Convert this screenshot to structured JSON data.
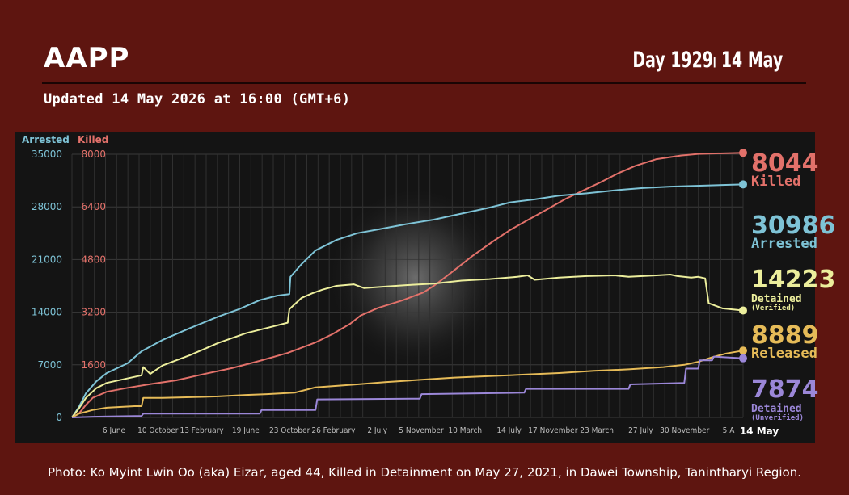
{
  "header": {
    "brand": "AAPP",
    "day": "Day 1929၊ 14 May",
    "updated": "Updated 14 May 2026 at 16:00 (GMT+6)"
  },
  "caption": "Photo: Ko Myint Lwin Oo (aka) Eizar, aged 44, Killed in Detainment on May 27, 2021, in Dawei Township, Tanintharyi Region.",
  "chart_data": {
    "type": "line",
    "axes": {
      "left_arrested": {
        "label": "Arrested",
        "ticks": [
          "0",
          "7000",
          "14000",
          "21000",
          "28000",
          "35000"
        ],
        "ylim": [
          0,
          35000
        ],
        "color": "#7ec3d6"
      },
      "left_killed": {
        "label": "Killed",
        "ticks": [
          "1600",
          "3200",
          "4800",
          "6400",
          "8000"
        ],
        "ylim": [
          0,
          8000
        ],
        "color": "#e2716a"
      }
    },
    "x_tick_labels": [
      "6 June",
      "10 October",
      "13 February",
      "19 June",
      "23 October",
      "26 February",
      "2 July",
      "5 November",
      "10 March",
      "14 July",
      "17 November",
      "23 March",
      "27 July",
      "30 November",
      "5 A"
    ],
    "x_end_label": "14 May",
    "x_range_days": [
      0,
      1929
    ],
    "grid": true,
    "series": [
      {
        "name": "Killed",
        "axis": "left_killed",
        "color": "#e2716a",
        "end_value": "8044",
        "points": [
          [
            0,
            0
          ],
          [
            20,
            120
          ],
          [
            40,
            380
          ],
          [
            60,
            600
          ],
          [
            100,
            780
          ],
          [
            160,
            900
          ],
          [
            230,
            1020
          ],
          [
            300,
            1130
          ],
          [
            380,
            1320
          ],
          [
            460,
            1500
          ],
          [
            540,
            1720
          ],
          [
            620,
            1960
          ],
          [
            700,
            2280
          ],
          [
            750,
            2540
          ],
          [
            800,
            2850
          ],
          [
            830,
            3100
          ],
          [
            880,
            3330
          ],
          [
            950,
            3560
          ],
          [
            1010,
            3800
          ],
          [
            1040,
            4000
          ],
          [
            1090,
            4400
          ],
          [
            1150,
            4900
          ],
          [
            1210,
            5350
          ],
          [
            1260,
            5700
          ],
          [
            1310,
            6000
          ],
          [
            1370,
            6350
          ],
          [
            1420,
            6650
          ],
          [
            1470,
            6900
          ],
          [
            1520,
            7150
          ],
          [
            1570,
            7420
          ],
          [
            1620,
            7650
          ],
          [
            1680,
            7850
          ],
          [
            1750,
            7960
          ],
          [
            1800,
            8010
          ],
          [
            1929,
            8044
          ]
        ]
      },
      {
        "name": "Arrested",
        "axis": "left_arrested",
        "color": "#7ec3d6",
        "end_value": "30986",
        "points": [
          [
            0,
            0
          ],
          [
            20,
            1400
          ],
          [
            40,
            3200
          ],
          [
            70,
            4800
          ],
          [
            100,
            5900
          ],
          [
            160,
            7200
          ],
          [
            200,
            8800
          ],
          [
            260,
            10300
          ],
          [
            340,
            11900
          ],
          [
            420,
            13400
          ],
          [
            480,
            14400
          ],
          [
            540,
            15600
          ],
          [
            590,
            16200
          ],
          [
            625,
            16400
          ],
          [
            628,
            18700
          ],
          [
            660,
            20400
          ],
          [
            700,
            22200
          ],
          [
            760,
            23600
          ],
          [
            820,
            24500
          ],
          [
            880,
            25000
          ],
          [
            960,
            25700
          ],
          [
            1040,
            26300
          ],
          [
            1100,
            26900
          ],
          [
            1160,
            27500
          ],
          [
            1200,
            27900
          ],
          [
            1260,
            28600
          ],
          [
            1330,
            29000
          ],
          [
            1400,
            29500
          ],
          [
            1480,
            29800
          ],
          [
            1560,
            30200
          ],
          [
            1640,
            30500
          ],
          [
            1720,
            30700
          ],
          [
            1929,
            30986
          ]
        ]
      },
      {
        "name": "Detained",
        "sublabel": "(Verified)",
        "axis": "left_arrested",
        "color": "#ecee9c",
        "end_value": "14223",
        "points": [
          [
            0,
            0
          ],
          [
            20,
            1200
          ],
          [
            40,
            2600
          ],
          [
            70,
            3900
          ],
          [
            100,
            4600
          ],
          [
            200,
            5600
          ],
          [
            205,
            6700
          ],
          [
            225,
            5800
          ],
          [
            260,
            6900
          ],
          [
            340,
            8300
          ],
          [
            420,
            9900
          ],
          [
            500,
            11200
          ],
          [
            560,
            11900
          ],
          [
            620,
            12600
          ],
          [
            625,
            14400
          ],
          [
            660,
            15900
          ],
          [
            690,
            16500
          ],
          [
            720,
            17000
          ],
          [
            760,
            17500
          ],
          [
            810,
            17700
          ],
          [
            840,
            17200
          ],
          [
            900,
            17400
          ],
          [
            960,
            17600
          ],
          [
            1040,
            17800
          ],
          [
            1120,
            18200
          ],
          [
            1200,
            18400
          ],
          [
            1280,
            18700
          ],
          [
            1310,
            18900
          ],
          [
            1330,
            18300
          ],
          [
            1400,
            18600
          ],
          [
            1480,
            18800
          ],
          [
            1560,
            18900
          ],
          [
            1600,
            18700
          ],
          [
            1680,
            18900
          ],
          [
            1720,
            19000
          ],
          [
            1740,
            18800
          ],
          [
            1780,
            18600
          ],
          [
            1800,
            18700
          ],
          [
            1820,
            18500
          ],
          [
            1830,
            15200
          ],
          [
            1870,
            14500
          ],
          [
            1929,
            14223
          ]
        ]
      },
      {
        "name": "Released",
        "axis": "left_arrested",
        "color": "#e6bb58",
        "end_value": "8889",
        "points": [
          [
            0,
            0
          ],
          [
            20,
            500
          ],
          [
            60,
            1000
          ],
          [
            100,
            1300
          ],
          [
            180,
            1500
          ],
          [
            200,
            1500
          ],
          [
            205,
            2600
          ],
          [
            260,
            2600
          ],
          [
            340,
            2700
          ],
          [
            420,
            2800
          ],
          [
            500,
            3000
          ],
          [
            560,
            3100
          ],
          [
            640,
            3300
          ],
          [
            700,
            4000
          ],
          [
            760,
            4200
          ],
          [
            820,
            4400
          ],
          [
            900,
            4700
          ],
          [
            1000,
            5000
          ],
          [
            1100,
            5300
          ],
          [
            1200,
            5500
          ],
          [
            1300,
            5700
          ],
          [
            1400,
            5900
          ],
          [
            1500,
            6200
          ],
          [
            1600,
            6400
          ],
          [
            1700,
            6700
          ],
          [
            1760,
            7000
          ],
          [
            1800,
            7400
          ],
          [
            1840,
            8000
          ],
          [
            1880,
            8500
          ],
          [
            1929,
            8889
          ]
        ]
      },
      {
        "name": "Detained",
        "sublabel": "(Unverified)",
        "axis": "left_arrested",
        "color": "#9b87d8",
        "end_value": "7874",
        "points": [
          [
            0,
            0
          ],
          [
            60,
            100
          ],
          [
            200,
            200
          ],
          [
            205,
            500
          ],
          [
            400,
            500
          ],
          [
            540,
            500
          ],
          [
            545,
            1000
          ],
          [
            700,
            1000
          ],
          [
            705,
            2400
          ],
          [
            1000,
            2500
          ],
          [
            1005,
            3100
          ],
          [
            1300,
            3300
          ],
          [
            1305,
            3800
          ],
          [
            1600,
            3800
          ],
          [
            1605,
            4400
          ],
          [
            1760,
            4600
          ],
          [
            1765,
            6500
          ],
          [
            1800,
            6500
          ],
          [
            1805,
            7600
          ],
          [
            1840,
            7600
          ],
          [
            1845,
            8100
          ],
          [
            1929,
            7874
          ]
        ]
      }
    ]
  }
}
